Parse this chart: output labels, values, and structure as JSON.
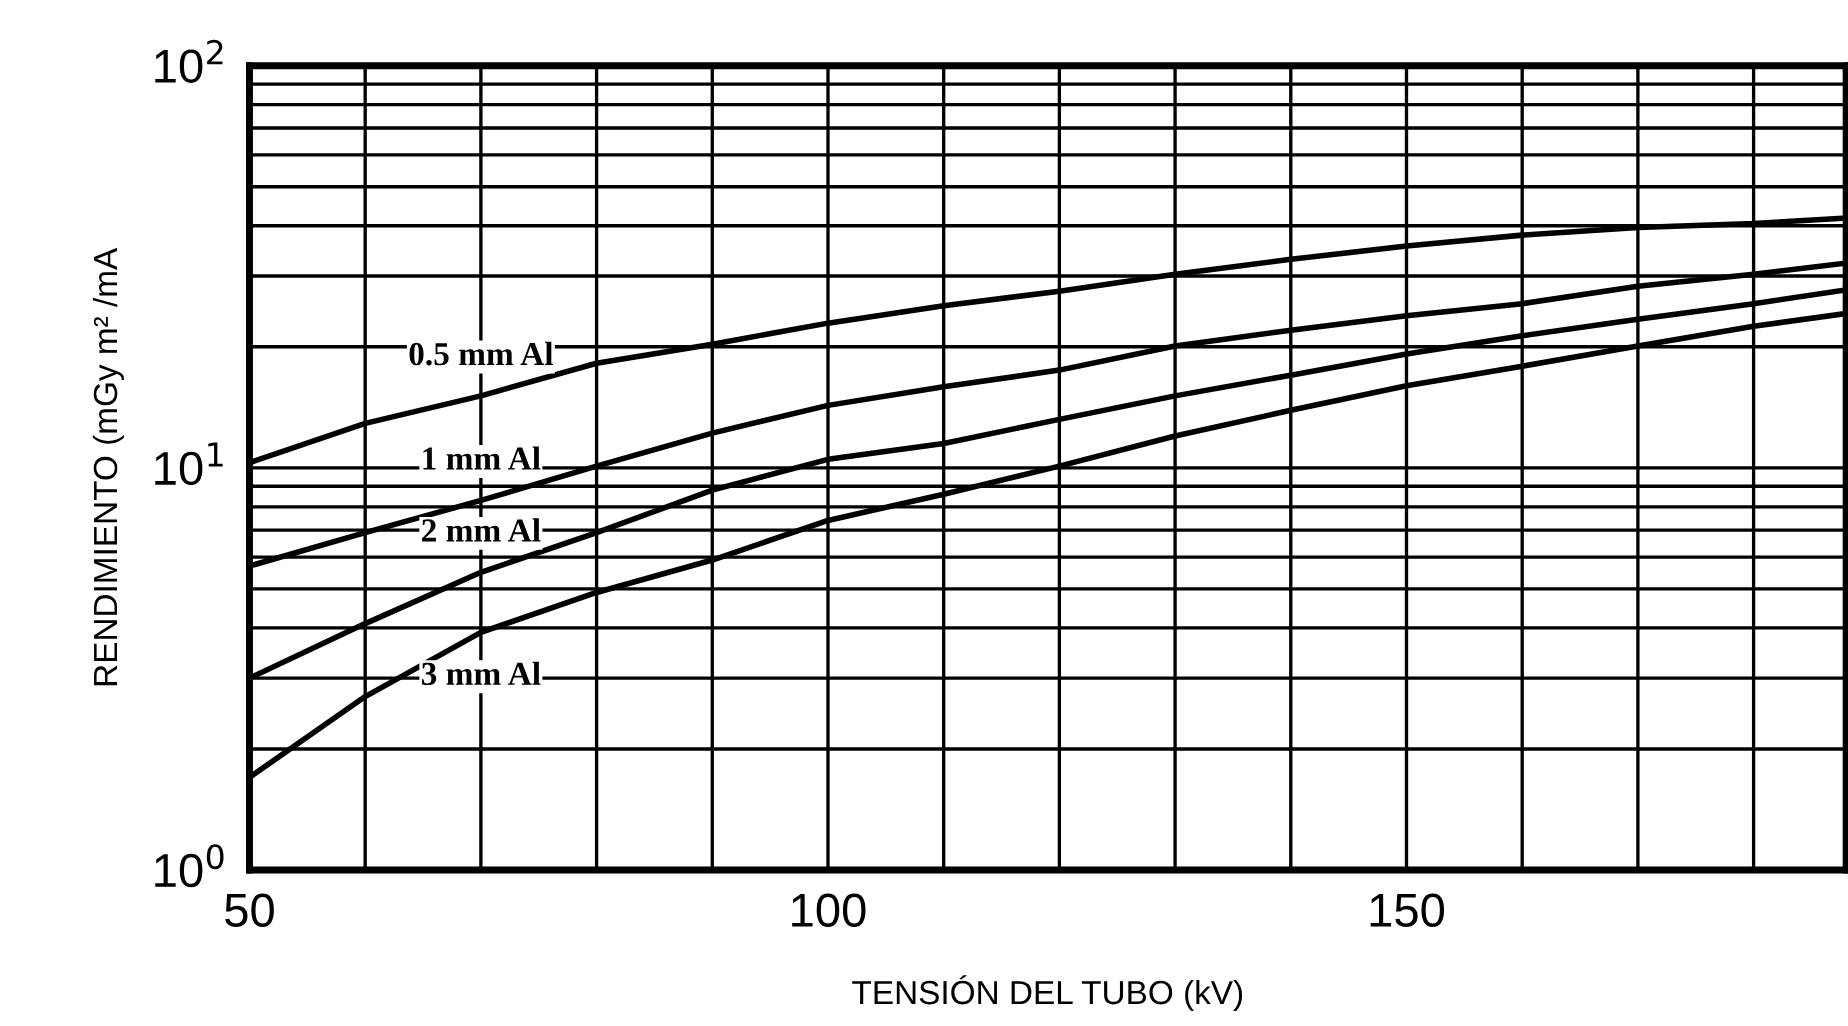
{
  "chart_data": {
    "type": "line",
    "xlabel": "TENSIÓN DEL TUBO (kV)",
    "ylabel": "RENDIMIENTO (mGy m² /mA",
    "x": [
      50,
      60,
      70,
      80,
      90,
      100,
      110,
      120,
      130,
      140,
      150,
      160,
      170,
      180,
      188
    ],
    "series": [
      {
        "name": "0.5 mm Al",
        "color": "#000000",
        "values": [
          10.3,
          12.9,
          15.1,
          18.2,
          20.3,
          22.9,
          25.3,
          27.5,
          30.3,
          33,
          35.6,
          37.9,
          39.6,
          40.5,
          41.8
        ]
      },
      {
        "name": "1 mm Al",
        "color": "#000000",
        "values": [
          5.7,
          6.9,
          8.3,
          10.1,
          12.2,
          14.3,
          15.9,
          17.5,
          20.1,
          22,
          23.9,
          25.6,
          28.3,
          30.3,
          32.3
        ]
      },
      {
        "name": "2 mm Al",
        "color": "#000000",
        "values": [
          3,
          4.1,
          5.5,
          6.9,
          8.8,
          10.5,
          11.5,
          13.2,
          15.1,
          17,
          19.2,
          21.3,
          23.4,
          25.6,
          27.7
        ]
      },
      {
        "name": "3 mm Al",
        "color": "#000000",
        "values": [
          1.7,
          2.7,
          3.9,
          4.9,
          5.9,
          7.4,
          8.6,
          10.1,
          12,
          13.9,
          16,
          17.9,
          20.1,
          22.5,
          24.2
        ]
      }
    ],
    "log": "y",
    "xlim": [
      50,
      188
    ],
    "ylim": [
      1,
      100
    ],
    "xticks": [
      50,
      {
        "value": 60,
        "label": null
      },
      {
        "value": 70,
        "label": null
      },
      {
        "value": 80,
        "label": null
      },
      {
        "value": 90,
        "label": null
      },
      100,
      {
        "value": 110,
        "label": null
      },
      {
        "value": 120,
        "label": null
      },
      {
        "value": 130,
        "label": null
      },
      {
        "value": 140,
        "label": null
      },
      150,
      {
        "value": 160,
        "label": null
      },
      {
        "value": 170,
        "label": null
      },
      {
        "value": 180,
        "label": null
      }
    ],
    "yticks": [
      {
        "value": 1,
        "label": "10$^{0}$"
      },
      {
        "value": 2,
        "label": null
      },
      {
        "value": 3,
        "label": null
      },
      {
        "value": 4,
        "label": null
      },
      {
        "value": 5,
        "label": null
      },
      {
        "value": 6,
        "label": null
      },
      {
        "value": 7,
        "label": null
      },
      {
        "value": 8,
        "label": null
      },
      {
        "value": 9,
        "label": null
      },
      {
        "value": 10,
        "label": "10$^{1}$"
      },
      {
        "value": 20,
        "label": null
      },
      {
        "value": 30,
        "label": null
      },
      {
        "value": 40,
        "label": null
      },
      {
        "value": 50,
        "label": null
      },
      {
        "value": 60,
        "label": null
      },
      {
        "value": 70,
        "label": null
      },
      {
        "value": 80,
        "label": null
      },
      {
        "value": 90,
        "label": null
      },
      {
        "value": 100,
        "label": "10$^{2}$"
      }
    ],
    "grid": true,
    "marker": "none",
    "line_style": "solid",
    "legend": false
  }
}
